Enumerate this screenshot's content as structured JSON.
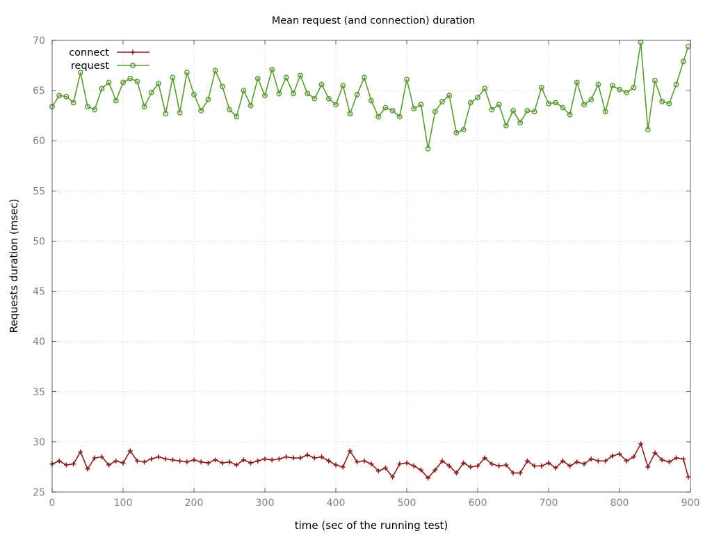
{
  "chart_data": {
    "type": "line",
    "title": "Mean request (and connection) duration",
    "xlabel": "time (sec of the running test)",
    "ylabel": "Requests duration (msec)",
    "xlim": [
      0,
      900
    ],
    "ylim": [
      25,
      70
    ],
    "xticks": [
      0,
      100,
      200,
      300,
      400,
      500,
      600,
      700,
      800,
      900
    ],
    "yticks": [
      25,
      30,
      35,
      40,
      45,
      50,
      55,
      60,
      65,
      70
    ],
    "xtick_labels": [
      "0",
      "100",
      "200",
      "300",
      "400",
      "500",
      "600",
      "700",
      "800",
      "900"
    ],
    "ytick_labels": [
      "25",
      "30",
      "35",
      "40",
      "45",
      "50",
      "55",
      "60",
      "65",
      "70"
    ],
    "grid": true,
    "legend_position": "top-left",
    "x": [
      0,
      10,
      20,
      30,
      40,
      50,
      60,
      70,
      80,
      90,
      100,
      110,
      120,
      130,
      140,
      150,
      160,
      170,
      180,
      190,
      200,
      210,
      220,
      230,
      240,
      250,
      260,
      270,
      280,
      290,
      300,
      310,
      320,
      330,
      340,
      350,
      360,
      370,
      380,
      390,
      400,
      410,
      420,
      430,
      440,
      450,
      460,
      470,
      480,
      490,
      500,
      510,
      520,
      530,
      540,
      550,
      560,
      570,
      580,
      590,
      600,
      610,
      620,
      630,
      640,
      650,
      660,
      670,
      680,
      690,
      700,
      710,
      720,
      730,
      740,
      750,
      760,
      770,
      780,
      790,
      800,
      810,
      820,
      830,
      840,
      850,
      860,
      870,
      880,
      890,
      897
    ],
    "series": [
      {
        "name": "connect",
        "color": "#8b1a1a",
        "marker": "plus",
        "values": [
          27.8,
          28.1,
          27.7,
          27.8,
          29.0,
          27.3,
          28.4,
          28.5,
          27.7,
          28.1,
          27.9,
          29.1,
          28.1,
          28.0,
          28.3,
          28.5,
          28.3,
          28.2,
          28.1,
          28.0,
          28.2,
          28.0,
          27.9,
          28.2,
          27.9,
          28.0,
          27.7,
          28.2,
          27.9,
          28.1,
          28.3,
          28.2,
          28.3,
          28.5,
          28.4,
          28.4,
          28.7,
          28.4,
          28.5,
          28.1,
          27.7,
          27.5,
          29.1,
          28.0,
          28.1,
          27.8,
          27.1,
          27.4,
          26.5,
          27.8,
          27.9,
          27.6,
          27.2,
          26.4,
          27.2,
          28.1,
          27.6,
          26.9,
          27.9,
          27.5,
          27.6,
          28.4,
          27.8,
          27.6,
          27.7,
          26.9,
          26.9,
          28.1,
          27.6,
          27.6,
          27.9,
          27.4,
          28.1,
          27.6,
          28.0,
          27.8,
          28.3,
          28.1,
          28.1,
          28.6,
          28.8,
          28.1,
          28.5,
          29.8,
          27.5,
          28.9,
          28.2,
          28.0,
          28.4,
          28.3,
          26.5
        ]
      },
      {
        "name": "request",
        "color": "#5a9a32",
        "marker": "circle",
        "values": [
          63.4,
          64.5,
          64.4,
          63.8,
          66.8,
          63.4,
          63.1,
          65.2,
          65.8,
          64.0,
          65.8,
          66.2,
          65.9,
          63.4,
          64.8,
          65.7,
          62.7,
          66.3,
          62.8,
          66.8,
          64.6,
          63.0,
          64.1,
          67.0,
          65.4,
          63.1,
          62.4,
          65.0,
          63.5,
          66.2,
          64.5,
          67.1,
          64.7,
          66.3,
          64.7,
          66.5,
          64.7,
          64.2,
          65.6,
          64.2,
          63.6,
          65.5,
          62.7,
          64.6,
          66.3,
          64.0,
          62.4,
          63.3,
          63.0,
          62.4,
          66.1,
          63.2,
          63.6,
          59.2,
          62.9,
          63.9,
          64.5,
          60.8,
          61.1,
          63.8,
          64.3,
          65.2,
          63.1,
          63.6,
          61.5,
          63.0,
          61.8,
          63.0,
          62.9,
          65.3,
          63.7,
          63.8,
          63.3,
          62.6,
          65.8,
          63.6,
          64.1,
          65.6,
          62.9,
          65.5,
          65.1,
          64.8,
          65.3,
          69.8,
          61.1,
          66.0,
          63.9,
          63.7,
          65.6,
          67.9,
          69.4
        ]
      }
    ]
  }
}
